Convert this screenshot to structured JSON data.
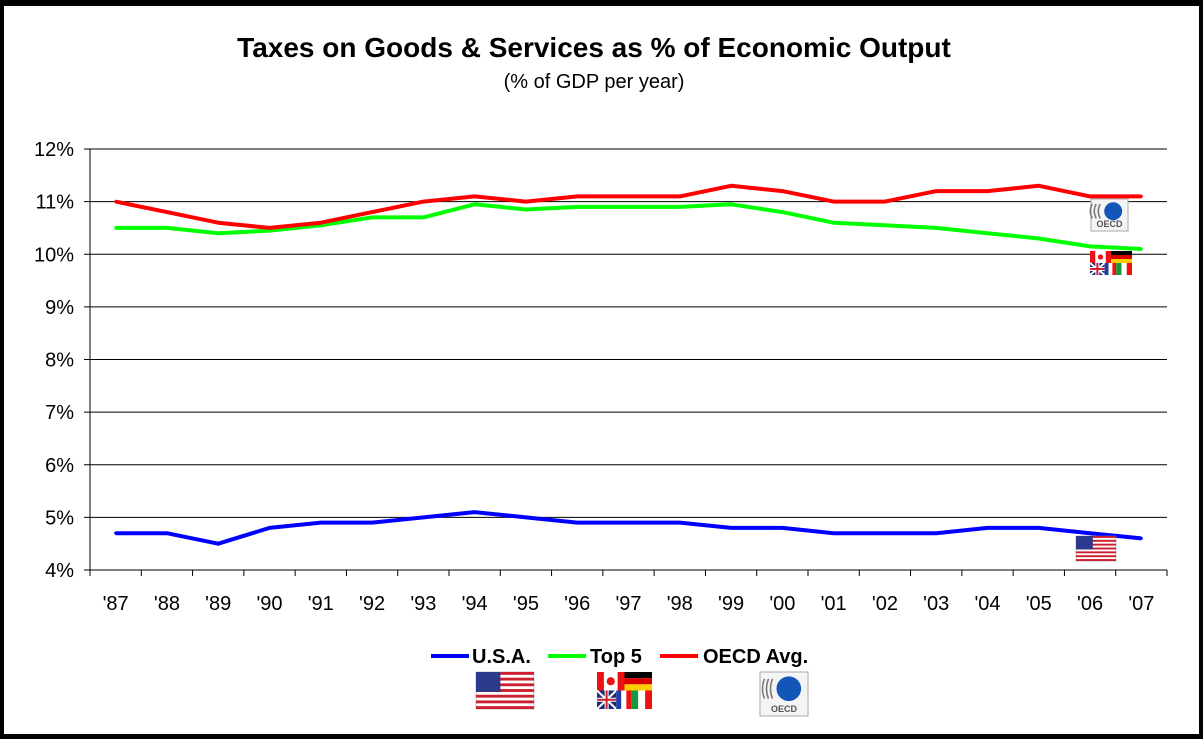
{
  "chart_data": {
    "type": "line",
    "title": "Taxes on Goods & Services as % of Economic Output",
    "subtitle": "(% of GDP per year)",
    "xlabel": "",
    "ylabel": "",
    "categories": [
      "'87",
      "'88",
      "'89",
      "'90",
      "'91",
      "'92",
      "'93",
      "'94",
      "'95",
      "'96",
      "'97",
      "'98",
      "'99",
      "'00",
      "'01",
      "'02",
      "'03",
      "'04",
      "'05",
      "'06",
      "'07"
    ],
    "ylim": [
      4,
      12
    ],
    "yticks": [
      4,
      5,
      6,
      7,
      8,
      9,
      10,
      11,
      12
    ],
    "ytick_labels": [
      "4%",
      "5%",
      "6%",
      "7%",
      "8%",
      "9%",
      "10%",
      "11%",
      "12%"
    ],
    "grid": true,
    "legend_position": "bottom",
    "series": [
      {
        "name": "U.S.A.",
        "color": "#0000ff",
        "icon": "us-flag-icon",
        "values": [
          4.7,
          4.7,
          4.5,
          4.8,
          4.9,
          4.9,
          5.0,
          5.1,
          5.0,
          4.9,
          4.9,
          4.9,
          4.8,
          4.8,
          4.7,
          4.7,
          4.7,
          4.8,
          4.8,
          4.7,
          4.6
        ]
      },
      {
        "name": "Top 5",
        "color": "#00ff00",
        "icon": "top5-flags-icon",
        "values": [
          10.5,
          10.5,
          10.4,
          10.45,
          10.55,
          10.7,
          10.7,
          10.95,
          10.85,
          10.9,
          10.9,
          10.9,
          10.95,
          10.8,
          10.6,
          10.55,
          10.5,
          10.4,
          10.3,
          10.15,
          10.1
        ]
      },
      {
        "name": "OECD Avg.",
        "color": "#ff0000",
        "icon": "oecd-logo-icon",
        "values": [
          11.0,
          10.8,
          10.6,
          10.5,
          10.6,
          10.8,
          11.0,
          11.1,
          11.0,
          11.1,
          11.1,
          11.1,
          11.3,
          11.2,
          11.0,
          11.0,
          11.2,
          11.2,
          11.3,
          11.1,
          11.1
        ]
      }
    ],
    "logo_text": "OECD"
  }
}
